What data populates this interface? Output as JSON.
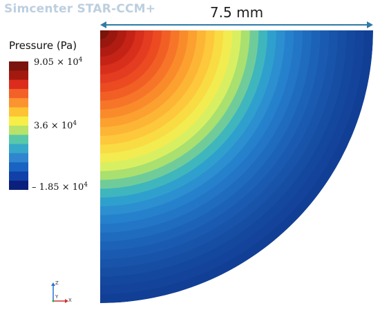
{
  "app": {
    "title": "Simcenter STAR-CCM+"
  },
  "dimension": {
    "label": "7.5 mm",
    "color": "#2e7aa8"
  },
  "legend": {
    "title": "Pressure (Pa)",
    "max_label": "9.05 × 10",
    "max_exp": "4",
    "mid_label": "3.6 × 10",
    "mid_exp": "4",
    "min_label": "– 1.85 × 10",
    "min_exp": "4",
    "max_value": 90500,
    "mid_value": 36000,
    "min_value": -18500,
    "colormap": [
      "#0b1f7d",
      "#1140a8",
      "#1a63c2",
      "#2f86cf",
      "#36a9c9",
      "#58c8a8",
      "#b8e26a",
      "#f7ee47",
      "#fdc332",
      "#fb9330",
      "#f36128",
      "#dc2d1c",
      "#a4190f",
      "#7a140c"
    ]
  },
  "axes_triad": {
    "z_label": "Z",
    "y_label": "Y",
    "x_label": "X",
    "colors": {
      "z": "#2a6fd0",
      "y": "#2aa84a",
      "x": "#d0302a"
    }
  },
  "contour": {
    "band_colors": [
      "#7a140c",
      "#98170e",
      "#b01c12",
      "#c52316",
      "#d82e1c",
      "#e33c20",
      "#ec4b22",
      "#f25f25",
      "#f77528",
      "#fa8b2b",
      "#fca030",
      "#fdb535",
      "#fdc83b",
      "#f9dc44",
      "#f2ec50",
      "#d9ef62",
      "#a9e070",
      "#6fcc9a",
      "#3fb6bd",
      "#2fa0cd",
      "#2b8fd0",
      "#2681cc",
      "#2376c6",
      "#1f6cbf",
      "#1c63b8",
      "#1a5bb1",
      "#1854aa",
      "#164ea4",
      "#14489f",
      "#13439a",
      "#123f96"
    ]
  }
}
